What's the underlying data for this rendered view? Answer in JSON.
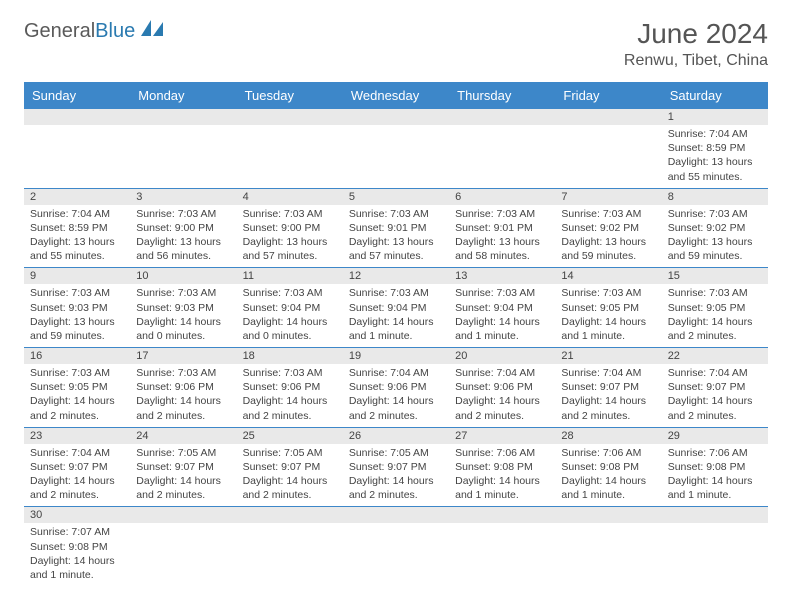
{
  "logo": {
    "general": "General",
    "blue": "Blue"
  },
  "title": "June 2024",
  "location": "Renwu, Tibet, China",
  "colors": {
    "header_bg": "#3d87c9",
    "header_text": "#ffffff",
    "daynum_bg": "#e9e9e9",
    "border": "#3d87c9",
    "logo_blue": "#2a7ab0",
    "text": "#444444"
  },
  "weekdays": [
    "Sunday",
    "Monday",
    "Tuesday",
    "Wednesday",
    "Thursday",
    "Friday",
    "Saturday"
  ],
  "weeks": [
    [
      {
        "n": "",
        "sr": "",
        "ss": "",
        "dl": ""
      },
      {
        "n": "",
        "sr": "",
        "ss": "",
        "dl": ""
      },
      {
        "n": "",
        "sr": "",
        "ss": "",
        "dl": ""
      },
      {
        "n": "",
        "sr": "",
        "ss": "",
        "dl": ""
      },
      {
        "n": "",
        "sr": "",
        "ss": "",
        "dl": ""
      },
      {
        "n": "",
        "sr": "",
        "ss": "",
        "dl": ""
      },
      {
        "n": "1",
        "sr": "Sunrise: 7:04 AM",
        "ss": "Sunset: 8:59 PM",
        "dl": "Daylight: 13 hours and 55 minutes."
      }
    ],
    [
      {
        "n": "2",
        "sr": "Sunrise: 7:04 AM",
        "ss": "Sunset: 8:59 PM",
        "dl": "Daylight: 13 hours and 55 minutes."
      },
      {
        "n": "3",
        "sr": "Sunrise: 7:03 AM",
        "ss": "Sunset: 9:00 PM",
        "dl": "Daylight: 13 hours and 56 minutes."
      },
      {
        "n": "4",
        "sr": "Sunrise: 7:03 AM",
        "ss": "Sunset: 9:00 PM",
        "dl": "Daylight: 13 hours and 57 minutes."
      },
      {
        "n": "5",
        "sr": "Sunrise: 7:03 AM",
        "ss": "Sunset: 9:01 PM",
        "dl": "Daylight: 13 hours and 57 minutes."
      },
      {
        "n": "6",
        "sr": "Sunrise: 7:03 AM",
        "ss": "Sunset: 9:01 PM",
        "dl": "Daylight: 13 hours and 58 minutes."
      },
      {
        "n": "7",
        "sr": "Sunrise: 7:03 AM",
        "ss": "Sunset: 9:02 PM",
        "dl": "Daylight: 13 hours and 59 minutes."
      },
      {
        "n": "8",
        "sr": "Sunrise: 7:03 AM",
        "ss": "Sunset: 9:02 PM",
        "dl": "Daylight: 13 hours and 59 minutes."
      }
    ],
    [
      {
        "n": "9",
        "sr": "Sunrise: 7:03 AM",
        "ss": "Sunset: 9:03 PM",
        "dl": "Daylight: 13 hours and 59 minutes."
      },
      {
        "n": "10",
        "sr": "Sunrise: 7:03 AM",
        "ss": "Sunset: 9:03 PM",
        "dl": "Daylight: 14 hours and 0 minutes."
      },
      {
        "n": "11",
        "sr": "Sunrise: 7:03 AM",
        "ss": "Sunset: 9:04 PM",
        "dl": "Daylight: 14 hours and 0 minutes."
      },
      {
        "n": "12",
        "sr": "Sunrise: 7:03 AM",
        "ss": "Sunset: 9:04 PM",
        "dl": "Daylight: 14 hours and 1 minute."
      },
      {
        "n": "13",
        "sr": "Sunrise: 7:03 AM",
        "ss": "Sunset: 9:04 PM",
        "dl": "Daylight: 14 hours and 1 minute."
      },
      {
        "n": "14",
        "sr": "Sunrise: 7:03 AM",
        "ss": "Sunset: 9:05 PM",
        "dl": "Daylight: 14 hours and 1 minute."
      },
      {
        "n": "15",
        "sr": "Sunrise: 7:03 AM",
        "ss": "Sunset: 9:05 PM",
        "dl": "Daylight: 14 hours and 2 minutes."
      }
    ],
    [
      {
        "n": "16",
        "sr": "Sunrise: 7:03 AM",
        "ss": "Sunset: 9:05 PM",
        "dl": "Daylight: 14 hours and 2 minutes."
      },
      {
        "n": "17",
        "sr": "Sunrise: 7:03 AM",
        "ss": "Sunset: 9:06 PM",
        "dl": "Daylight: 14 hours and 2 minutes."
      },
      {
        "n": "18",
        "sr": "Sunrise: 7:03 AM",
        "ss": "Sunset: 9:06 PM",
        "dl": "Daylight: 14 hours and 2 minutes."
      },
      {
        "n": "19",
        "sr": "Sunrise: 7:04 AM",
        "ss": "Sunset: 9:06 PM",
        "dl": "Daylight: 14 hours and 2 minutes."
      },
      {
        "n": "20",
        "sr": "Sunrise: 7:04 AM",
        "ss": "Sunset: 9:06 PM",
        "dl": "Daylight: 14 hours and 2 minutes."
      },
      {
        "n": "21",
        "sr": "Sunrise: 7:04 AM",
        "ss": "Sunset: 9:07 PM",
        "dl": "Daylight: 14 hours and 2 minutes."
      },
      {
        "n": "22",
        "sr": "Sunrise: 7:04 AM",
        "ss": "Sunset: 9:07 PM",
        "dl": "Daylight: 14 hours and 2 minutes."
      }
    ],
    [
      {
        "n": "23",
        "sr": "Sunrise: 7:04 AM",
        "ss": "Sunset: 9:07 PM",
        "dl": "Daylight: 14 hours and 2 minutes."
      },
      {
        "n": "24",
        "sr": "Sunrise: 7:05 AM",
        "ss": "Sunset: 9:07 PM",
        "dl": "Daylight: 14 hours and 2 minutes."
      },
      {
        "n": "25",
        "sr": "Sunrise: 7:05 AM",
        "ss": "Sunset: 9:07 PM",
        "dl": "Daylight: 14 hours and 2 minutes."
      },
      {
        "n": "26",
        "sr": "Sunrise: 7:05 AM",
        "ss": "Sunset: 9:07 PM",
        "dl": "Daylight: 14 hours and 2 minutes."
      },
      {
        "n": "27",
        "sr": "Sunrise: 7:06 AM",
        "ss": "Sunset: 9:08 PM",
        "dl": "Daylight: 14 hours and 1 minute."
      },
      {
        "n": "28",
        "sr": "Sunrise: 7:06 AM",
        "ss": "Sunset: 9:08 PM",
        "dl": "Daylight: 14 hours and 1 minute."
      },
      {
        "n": "29",
        "sr": "Sunrise: 7:06 AM",
        "ss": "Sunset: 9:08 PM",
        "dl": "Daylight: 14 hours and 1 minute."
      }
    ],
    [
      {
        "n": "30",
        "sr": "Sunrise: 7:07 AM",
        "ss": "Sunset: 9:08 PM",
        "dl": "Daylight: 14 hours and 1 minute."
      },
      {
        "n": "",
        "sr": "",
        "ss": "",
        "dl": ""
      },
      {
        "n": "",
        "sr": "",
        "ss": "",
        "dl": ""
      },
      {
        "n": "",
        "sr": "",
        "ss": "",
        "dl": ""
      },
      {
        "n": "",
        "sr": "",
        "ss": "",
        "dl": ""
      },
      {
        "n": "",
        "sr": "",
        "ss": "",
        "dl": ""
      },
      {
        "n": "",
        "sr": "",
        "ss": "",
        "dl": ""
      }
    ]
  ]
}
